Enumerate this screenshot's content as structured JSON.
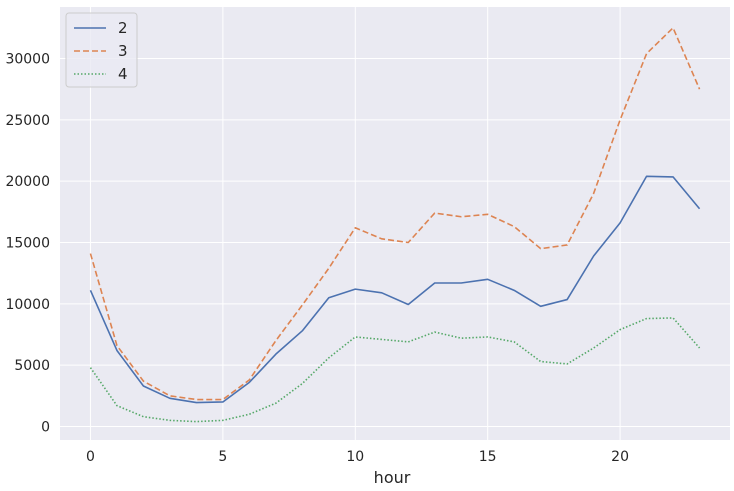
{
  "chart_data": {
    "type": "line",
    "title": "",
    "xlabel": "hour",
    "ylabel": "",
    "xlim": [
      -1.15,
      24.15
    ],
    "ylim": [
      -1100,
      34200
    ],
    "xticks": [
      0,
      5,
      10,
      15,
      20
    ],
    "yticks": [
      0,
      5000,
      10000,
      15000,
      20000,
      25000,
      30000
    ],
    "grid": true,
    "legend_position": "top-left",
    "x": [
      0,
      1,
      2,
      3,
      4,
      5,
      6,
      7,
      8,
      9,
      10,
      11,
      12,
      13,
      14,
      15,
      16,
      17,
      18,
      19,
      20,
      21,
      22,
      23
    ],
    "series": [
      {
        "name": "2",
        "color": "#4c72b0",
        "dash": "solid",
        "values": [
          11100,
          6200,
          3300,
          2300,
          1950,
          2000,
          3600,
          5900,
          7800,
          10500,
          11200,
          10900,
          9950,
          11700,
          11700,
          12000,
          11100,
          9800,
          10350,
          13900,
          16600,
          20400,
          20350,
          17750
        ]
      },
      {
        "name": "3",
        "color": "#dd8452",
        "dash": "dashed",
        "values": [
          14100,
          6600,
          3700,
          2500,
          2200,
          2200,
          3800,
          7000,
          9900,
          12900,
          16200,
          15300,
          15000,
          17400,
          17100,
          17300,
          16300,
          14500,
          14800,
          19000,
          25000,
          30400,
          32500,
          27500
        ]
      },
      {
        "name": "4",
        "color": "#55a868",
        "dash": "dotted",
        "values": [
          4800,
          1700,
          800,
          500,
          400,
          500,
          1000,
          1900,
          3500,
          5600,
          7300,
          7100,
          6900,
          7700,
          7200,
          7300,
          6900,
          5300,
          5100,
          6400,
          7900,
          8800,
          8850,
          6400
        ]
      }
    ]
  },
  "colors": {
    "plot_background": "#eaeaf2",
    "grid": "#ffffff",
    "text": "#262626"
  }
}
